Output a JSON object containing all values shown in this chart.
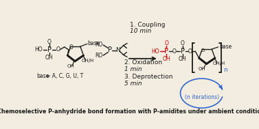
{
  "title": "Chemoselective P-anhydride bond formation with P-amidites under ambient conditions",
  "bg_color": "#f2ede0",
  "step1_text": "1. Coupling",
  "step1_time": "10 min",
  "step2_text": "2. Oxidation",
  "step2_time": "1 min",
  "step3_text": "3. Deprotection",
  "step3_time": "5 min",
  "n_iter_text": "(n iterations)",
  "black": "#1a1a1a",
  "red": "#cc0000",
  "blue": "#3366cc"
}
